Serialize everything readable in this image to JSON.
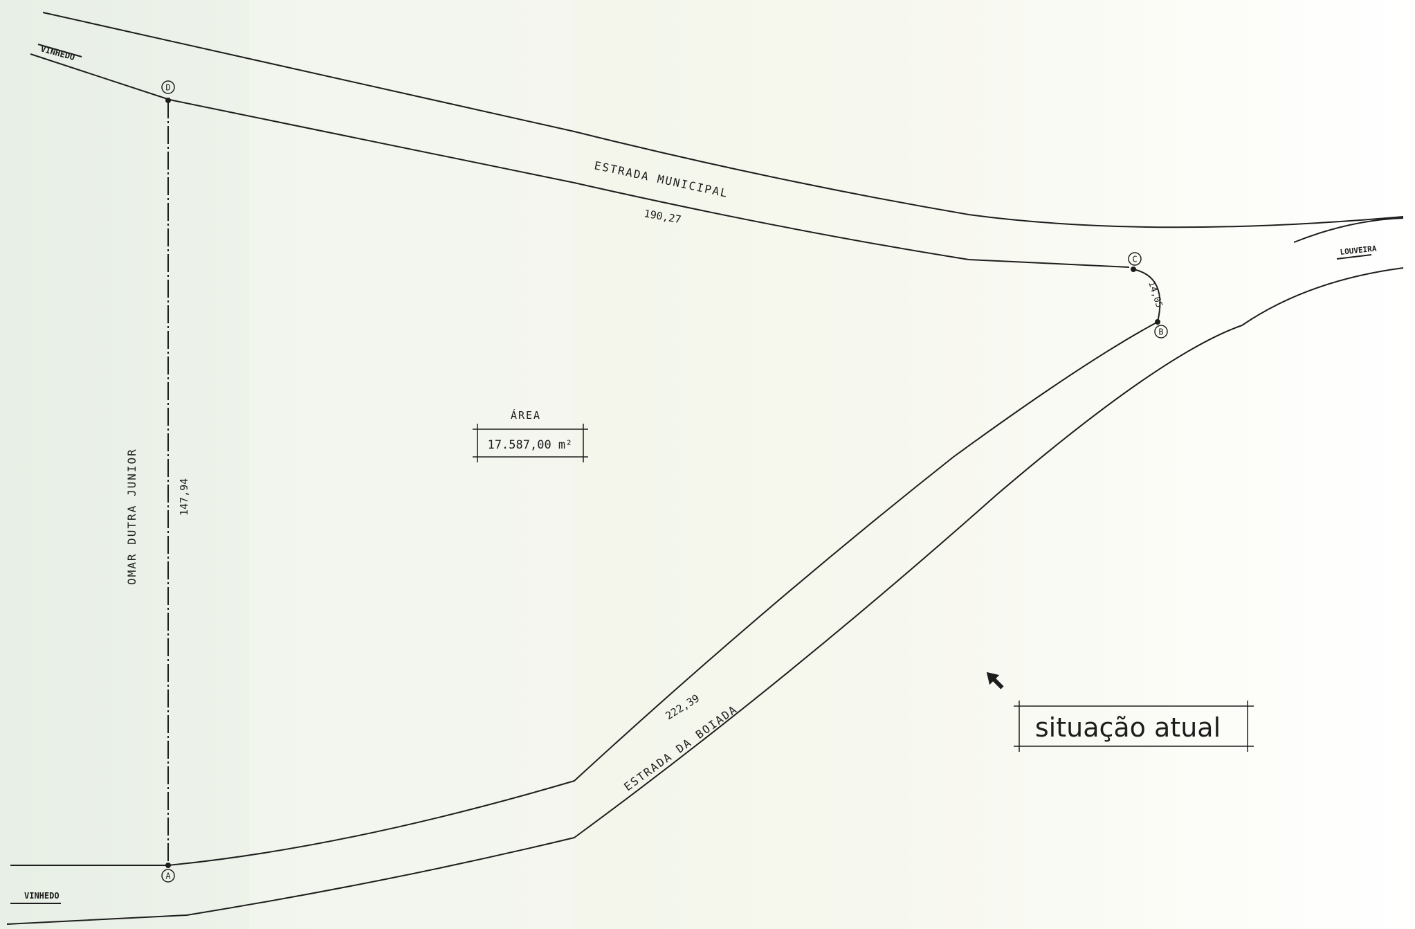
{
  "roads": {
    "top_left_town": "VINHEDO",
    "bottom_left_town": "VINHEDO",
    "right_town": "LOUVEIRA",
    "top_road": "ESTRADA MUNICIPAL",
    "bottom_road": "ESTRADA DA BOIADA",
    "left_neighbor": "OMAR DUTRA JUNIOR"
  },
  "vertices": {
    "a": "A",
    "b": "B",
    "c": "C",
    "d": "D"
  },
  "dimensions": {
    "side_dc": "190,27",
    "side_cb": "14,05",
    "side_ba": "222,39",
    "side_ad": "147,94"
  },
  "area": {
    "label": "ÁREA",
    "value": "17.587,00 m²"
  },
  "situation_label": "situação atual",
  "colors": {
    "ink": "#1d1d1d",
    "paper_left": "#e7efe6",
    "paper_right": "#ffffff"
  },
  "icons": {
    "north_arrow": "north-arrow-icon"
  }
}
